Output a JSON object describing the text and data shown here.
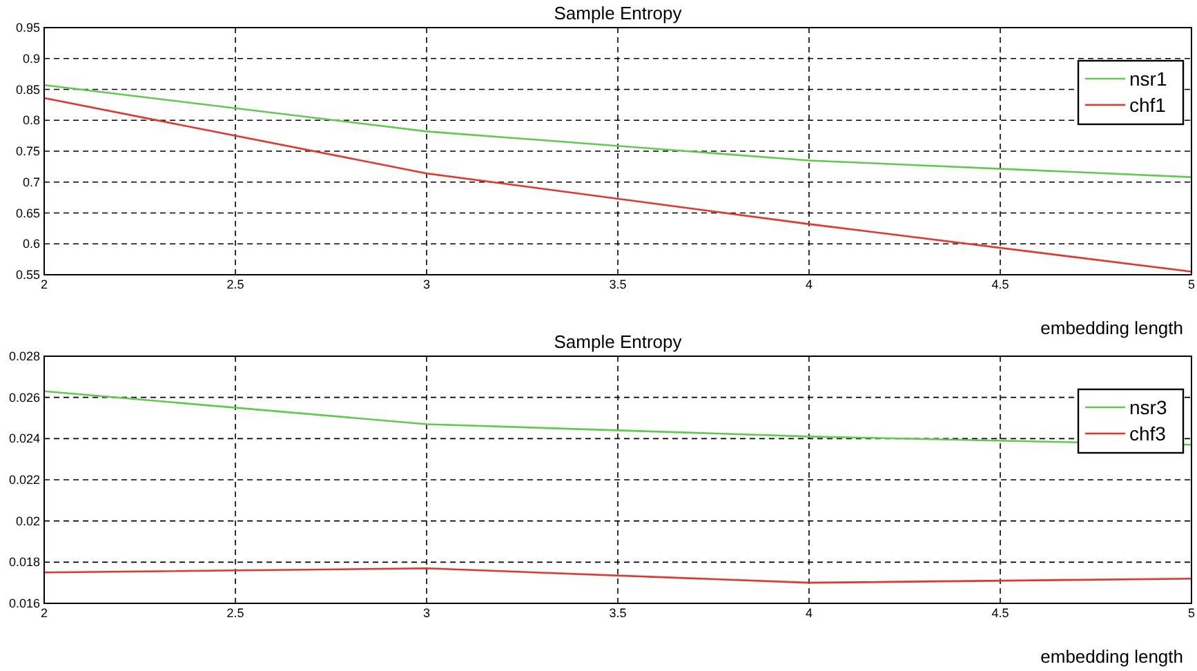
{
  "chart_data": [
    {
      "type": "line",
      "title": "Sample Entropy",
      "xlabel": "embedding length",
      "x": [
        2,
        3,
        4,
        5
      ],
      "series": [
        {
          "name": "nsr1",
          "color": "#5ccc4a",
          "values": [
            0.857,
            0.782,
            0.735,
            0.708
          ]
        },
        {
          "name": "chf1",
          "color": "#e8322a",
          "values": [
            0.836,
            0.714,
            0.632,
            0.555
          ]
        }
      ],
      "xlim": [
        2,
        5
      ],
      "xticks": [
        2,
        2.5,
        3,
        3.5,
        4,
        4.5,
        5
      ],
      "ylim": [
        0.55,
        0.95
      ],
      "yticks": [
        0.55,
        0.6,
        0.65,
        0.7,
        0.75,
        0.8,
        0.85,
        0.9,
        0.95
      ],
      "grid": true,
      "legend": "top right"
    },
    {
      "type": "line",
      "title": "Sample Entropy",
      "xlabel": "embedding length",
      "x": [
        2,
        3,
        4,
        5
      ],
      "series": [
        {
          "name": "nsr3",
          "color": "#5ccc4a",
          "values": [
            0.0263,
            0.0247,
            0.0241,
            0.0237
          ]
        },
        {
          "name": "chf3",
          "color": "#e8322a",
          "values": [
            0.0175,
            0.0177,
            0.017,
            0.0172
          ]
        }
      ],
      "xlim": [
        2,
        5
      ],
      "xticks": [
        2,
        2.5,
        3,
        3.5,
        4,
        4.5,
        5
      ],
      "ylim": [
        0.016,
        0.028
      ],
      "yticks": [
        0.016,
        0.018,
        0.02,
        0.022,
        0.024,
        0.026,
        0.028
      ],
      "grid": true,
      "legend": "top right"
    }
  ]
}
